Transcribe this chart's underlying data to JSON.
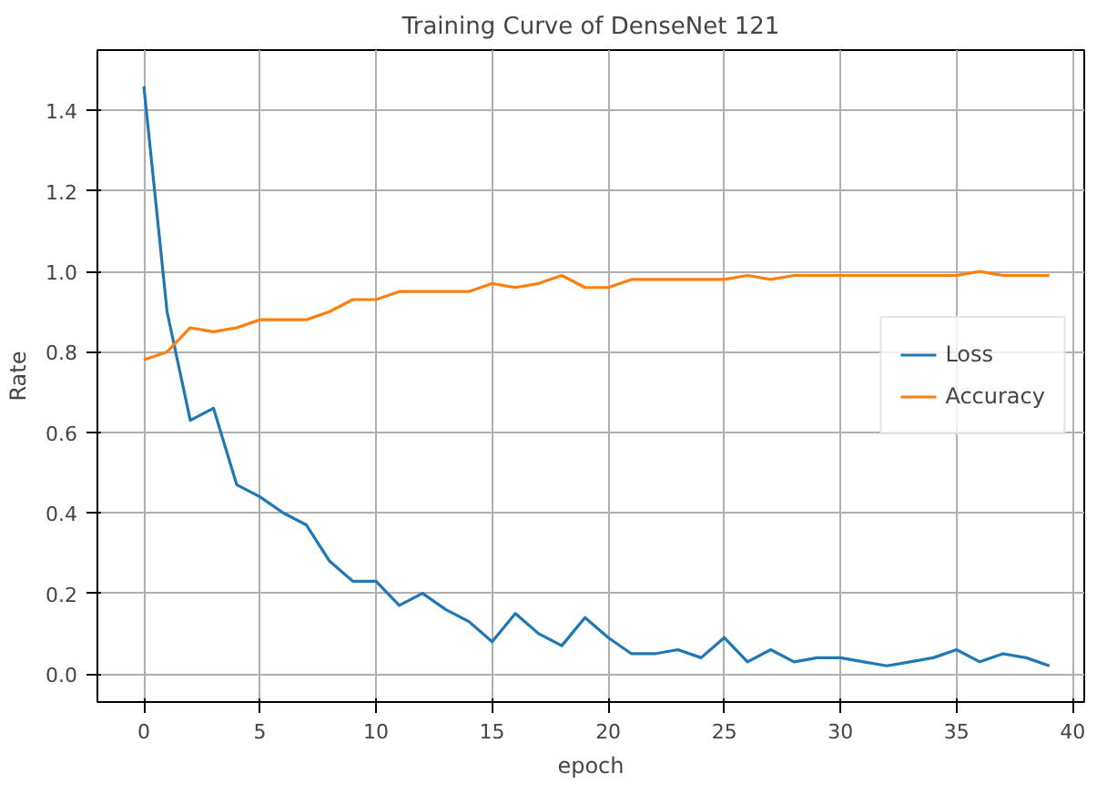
{
  "chart_data": {
    "type": "line",
    "title": "Training Curve of DenseNet 121",
    "xlabel": "epoch",
    "ylabel": "Rate",
    "x": [
      0,
      1,
      2,
      3,
      4,
      5,
      6,
      7,
      8,
      9,
      10,
      11,
      12,
      13,
      14,
      15,
      16,
      17,
      18,
      19,
      20,
      21,
      22,
      23,
      24,
      25,
      26,
      27,
      28,
      29,
      30,
      31,
      32,
      33,
      34,
      35,
      36,
      37,
      38,
      39
    ],
    "series": [
      {
        "name": "Loss",
        "color": "#1f77b4",
        "values": [
          1.46,
          0.9,
          0.63,
          0.66,
          0.47,
          0.44,
          0.4,
          0.37,
          0.28,
          0.23,
          0.23,
          0.17,
          0.2,
          0.16,
          0.13,
          0.08,
          0.15,
          0.1,
          0.07,
          0.14,
          0.09,
          0.05,
          0.05,
          0.06,
          0.04,
          0.09,
          0.03,
          0.06,
          0.03,
          0.04,
          0.04,
          0.03,
          0.02,
          0.03,
          0.04,
          0.06,
          0.03,
          0.05,
          0.04,
          0.02
        ]
      },
      {
        "name": "Accuracy",
        "color": "#ff7f0e",
        "values": [
          0.78,
          0.8,
          0.86,
          0.85,
          0.86,
          0.88,
          0.88,
          0.88,
          0.9,
          0.93,
          0.93,
          0.95,
          0.95,
          0.95,
          0.95,
          0.97,
          0.96,
          0.97,
          0.99,
          0.96,
          0.96,
          0.98,
          0.98,
          0.98,
          0.98,
          0.98,
          0.99,
          0.98,
          0.99,
          0.99,
          0.99,
          0.99,
          0.99,
          0.99,
          0.99,
          0.99,
          1.0,
          0.99,
          0.99,
          0.99
        ]
      }
    ],
    "xlim": [
      -2,
      40.5
    ],
    "ylim": [
      -0.07,
      1.55
    ],
    "xticks": [
      0,
      5,
      10,
      15,
      20,
      25,
      30,
      35,
      40
    ],
    "yticks": [
      {
        "value": 0,
        "label": "0.0"
      },
      {
        "value": 0.2,
        "label": "0.2"
      },
      {
        "value": 0.4,
        "label": "0.4"
      },
      {
        "value": 0.6,
        "label": "0.6"
      },
      {
        "value": 0.8,
        "label": "0.8"
      },
      {
        "value": 1.0,
        "label": "1.0"
      },
      {
        "value": 1.2,
        "label": "1.2"
      },
      {
        "value": 1.4,
        "label": "1.4"
      }
    ],
    "grid": true,
    "legend": "center right",
    "marker": "none",
    "line_style": "solid"
  }
}
